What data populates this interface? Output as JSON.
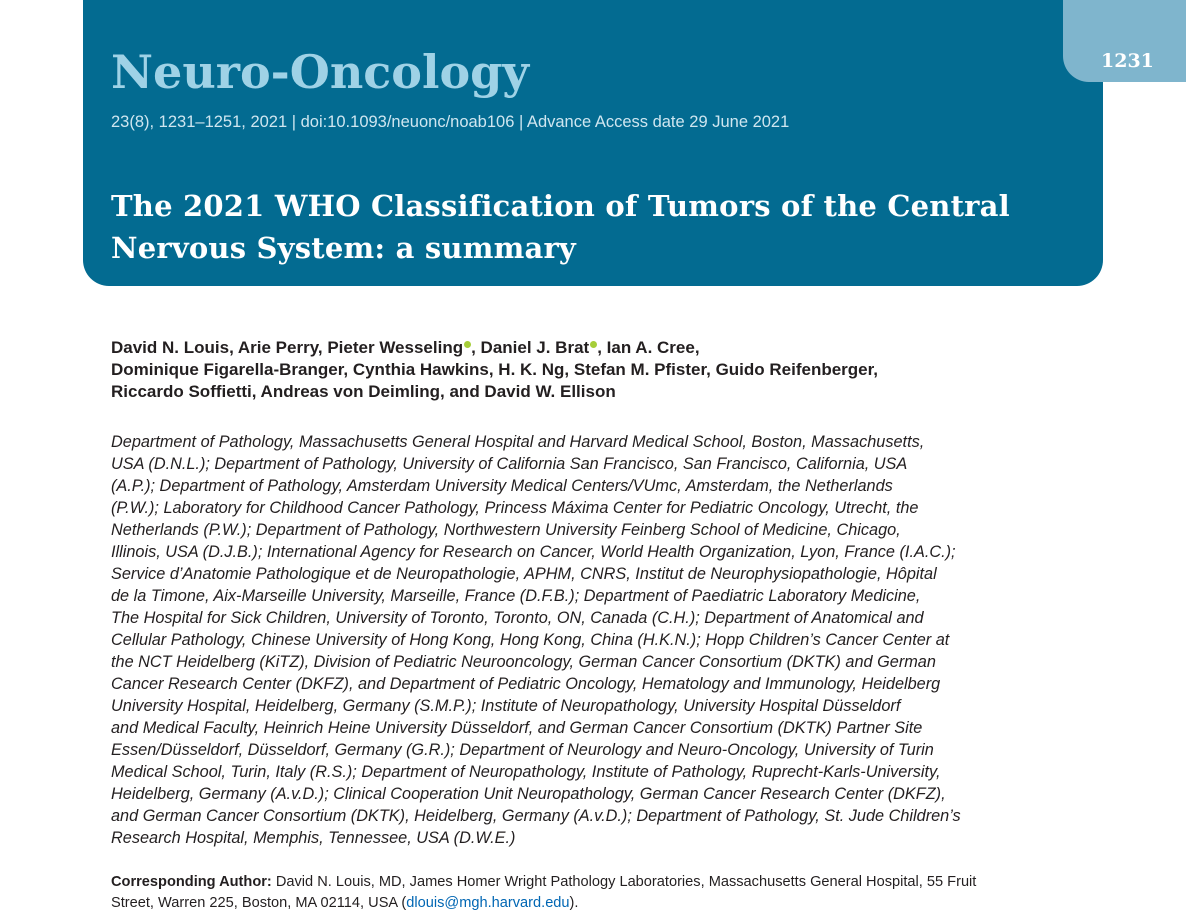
{
  "journal": {
    "name": "Neuro-Oncology",
    "citation": "23(8), 1231–1251, 2021 | doi:10.1093/neuonc/noab106 | Advance Access date 29 June 2021",
    "page_number": "1231"
  },
  "article": {
    "title_line1": "The 2021 WHO Classification of Tumors of the Central",
    "title_line2": "Nervous System: a summary"
  },
  "authors": {
    "line1": [
      "David N. Louis, Arie  Perry, Pieter Wesseling",
      ", Daniel J. Brat",
      ", Ian A. Cree,"
    ],
    "line2": "Dominique Figarella-Branger, Cynthia Hawkins, H. K. Ng, Stefan M. Pfister, Guido Reifenberger,",
    "line3": "Riccardo Soffietti, Andreas von Deimling, and David W. Ellison"
  },
  "affiliations": [
    "Department of Pathology, Massachusetts General Hospital and Harvard Medical School, Boston, Massachusetts,",
    "USA (D.N.L.); Department of Pathology, University of California San Francisco, San Francisco, California, USA",
    "(A.P.); Department of Pathology, Amsterdam University Medical Centers/VUmc, Amsterdam, the Netherlands",
    "(P.W.); Laboratory for Childhood Cancer Pathology, Princess Máxima Center for Pediatric Oncology, Utrecht, the",
    "Netherlands (P.W.); Department of Pathology, Northwestern University Feinberg School of Medicine, Chicago,",
    "Illinois, USA (D.J.B.); International Agency for Research on Cancer, World Health Organization, Lyon, France (I.A.C.);",
    "Service d’Anatomie Pathologique et de Neuropathologie, APHM, CNRS, Institut de Neurophysiopathologie, Hôpital",
    "de la Timone, Aix-Marseille University, Marseille, France (D.F.B.); Department of Paediatric Laboratory Medicine,",
    "The Hospital for Sick Children, University of Toronto, Toronto, ON, Canada (C.H.); Department of Anatomical and",
    "Cellular Pathology, Chinese University of Hong Kong, Hong Kong, China (H.K.N.); Hopp Children’s Cancer Center at",
    "the NCT Heidelberg (KiTZ), Division of Pediatric Neurooncology, German Cancer Consortium (DKTK) and German",
    "Cancer Research Center (DKFZ), and Department of Pediatric Oncology, Hematology and Immunology, Heidelberg",
    "University Hospital, Heidelberg, Germany (S.M.P.); Institute of Neuropathology, University Hospital Düsseldorf",
    "and Medical Faculty, Heinrich Heine University Düsseldorf, and German Cancer Consortium (DKTK) Partner Site",
    "Essen/Düsseldorf, Düsseldorf, Germany (G.R.); Department of Neurology and Neuro-Oncology, University of Turin",
    "Medical School, Turin, Italy (R.S.); Department of Neuropathology, Institute of Pathology, Ruprecht-Karls-University,",
    "Heidelberg, Germany (A.v.D.); Clinical Cooperation Unit Neuropathology, German Cancer Research Center (DKFZ),",
    "and German Cancer Consortium (DKTK), Heidelberg, Germany (A.v.D.); Department of Pathology, St. Jude Children’s",
    "Research Hospital, Memphis, Tennessee, USA (D.W.E.)"
  ],
  "corresponding": {
    "label": "Corresponding Author:",
    "text_line1": " David N. Louis, MD, James Homer Wright Pathology Laboratories, Massachusetts General Hospital, 55 Fruit",
    "text_line2_before": "Street, Warren 225, Boston, MA 02114, USA (",
    "email": "dlouis@mgh.harvard.edu",
    "text_line2_after": ")."
  },
  "colors": {
    "banner": "#036b91",
    "journal_name": "#9fd2e6",
    "page_tab": "#7fb5cd",
    "orcid": "#a6ce39",
    "link": "#0066b3"
  },
  "icons": [
    "orcid-icon"
  ]
}
